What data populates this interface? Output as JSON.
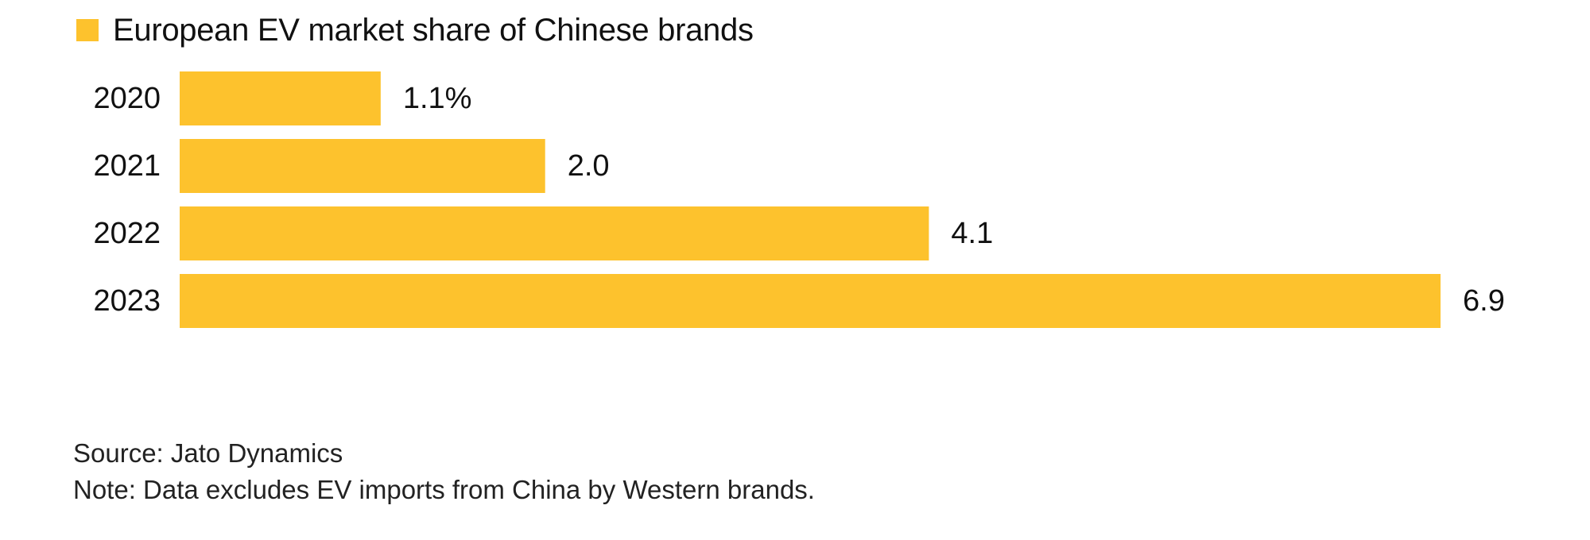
{
  "colors": {
    "bar": "#FDC22D",
    "text": "#111111",
    "background": "#FFFFFF"
  },
  "legend": {
    "label": "European EV market share of Chinese brands"
  },
  "chart_data": {
    "type": "bar",
    "orientation": "horizontal",
    "categories": [
      "2020",
      "2021",
      "2022",
      "2023"
    ],
    "series": [
      {
        "name": "European EV market share of Chinese brands",
        "values": [
          1.1,
          2.0,
          4.1,
          6.9
        ]
      }
    ],
    "value_labels": [
      "1.1%",
      "2.0",
      "4.1",
      "6.9"
    ],
    "unit": "%",
    "xlim": [
      0,
      6.9
    ],
    "grid": false,
    "legend_position": "top-left"
  },
  "footer": {
    "source": "Source: Jato Dynamics",
    "note": "Note: Data excludes EV imports from China by Western brands."
  }
}
